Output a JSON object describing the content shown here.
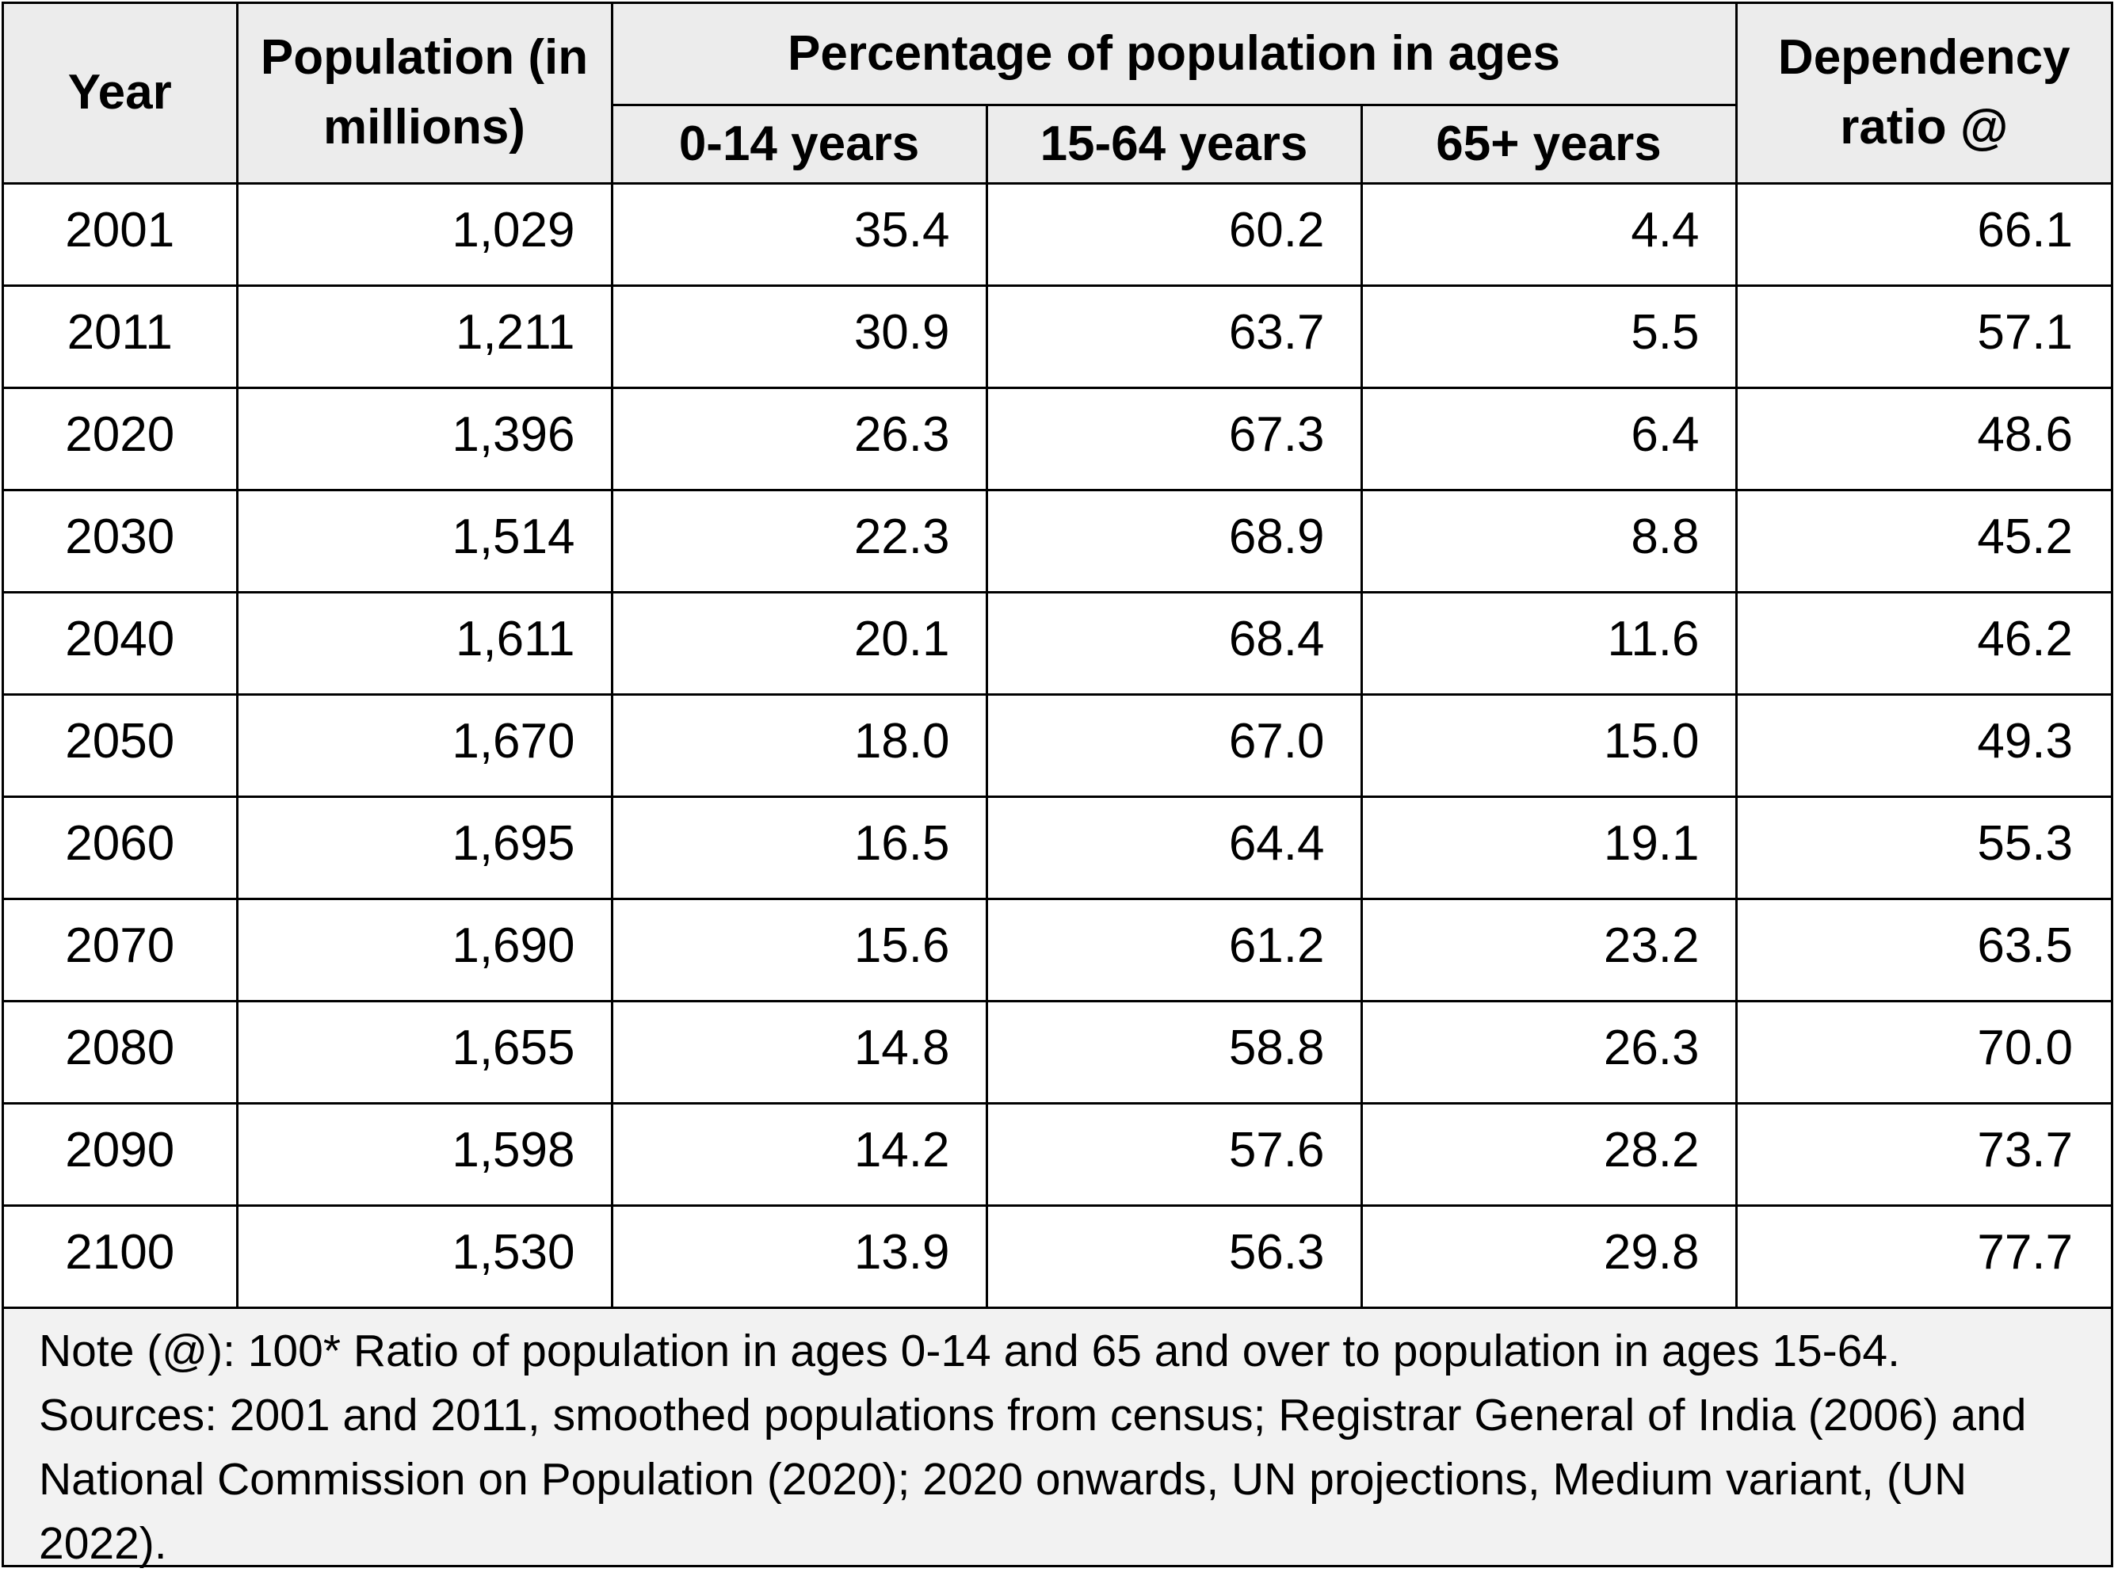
{
  "chart_data": {
    "type": "table",
    "headers": {
      "year": "Year",
      "population": "Population (in millions)",
      "age_group": "Percentage of population in ages",
      "ages_0_14": "0-14 years",
      "ages_15_64": "15-64 years",
      "ages_65_plus": "65+ years",
      "dependency": "Dependency ratio @"
    },
    "columns": [
      "Year",
      "Population (in millions)",
      "0-14 years",
      "15-64 years",
      "65+ years",
      "Dependency ratio @"
    ],
    "rows": [
      [
        "2001",
        "1,029",
        "35.4",
        "60.2",
        "4.4",
        "66.1"
      ],
      [
        "2011",
        "1,211",
        "30.9",
        "63.7",
        "5.5",
        "57.1"
      ],
      [
        "2020",
        "1,396",
        "26.3",
        "67.3",
        "6.4",
        "48.6"
      ],
      [
        "2030",
        "1,514",
        "22.3",
        "68.9",
        "8.8",
        "45.2"
      ],
      [
        "2040",
        "1,611",
        "20.1",
        "68.4",
        "11.6",
        "46.2"
      ],
      [
        "2050",
        "1,670",
        "18.0",
        "67.0",
        "15.0",
        "49.3"
      ],
      [
        "2060",
        "1,695",
        "16.5",
        "64.4",
        "19.1",
        "55.3"
      ],
      [
        "2070",
        "1,690",
        "15.6",
        "61.2",
        "23.2",
        "63.5"
      ],
      [
        "2080",
        "1,655",
        "14.8",
        "58.8",
        "26.3",
        "70.0"
      ],
      [
        "2090",
        "1,598",
        "14.2",
        "57.6",
        "28.2",
        "73.7"
      ],
      [
        "2100",
        "1,530",
        "13.9",
        "56.3",
        "29.8",
        "77.7"
      ]
    ],
    "note": "Note (@): 100* Ratio of population in ages 0-14 and 65 and over to population in ages 15-64. Sources: 2001 and 2011, smoothed populations from census; Registrar General of India (2006) and National Commission on Population (2020); 2020 onwards, UN projections, Medium variant, (UN 2022)."
  },
  "colors": {
    "header_background": "#ececec",
    "note_background": "#f2f2f2",
    "border": "#000000"
  }
}
